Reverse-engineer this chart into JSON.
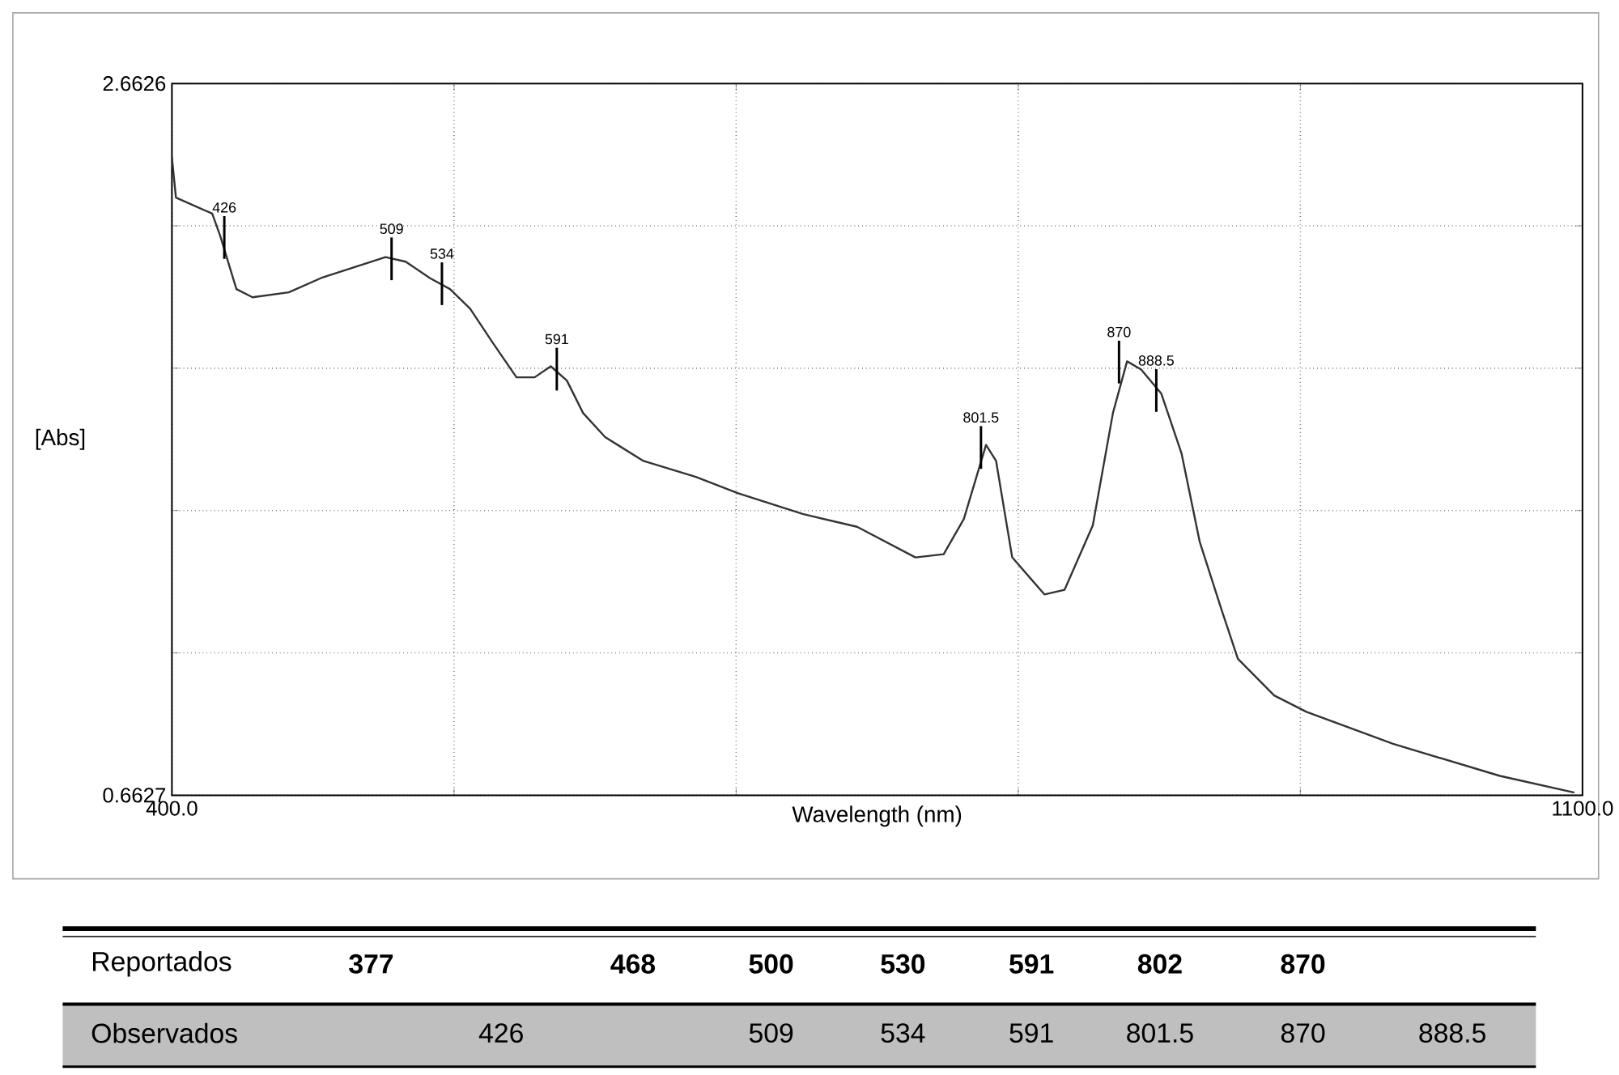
{
  "chart_data": {
    "type": "line",
    "xlabel": "Wavelength (nm)",
    "ylabel": "[Abs]",
    "color": "#333333",
    "grid": true,
    "marker": "none",
    "line_style": "solid",
    "x": [
      400,
      402,
      420,
      424,
      432,
      440,
      458,
      474,
      506,
      516,
      528,
      538,
      548,
      559,
      571,
      580,
      588,
      596,
      604,
      615,
      634,
      660,
      681,
      713,
      740,
      769,
      783,
      793,
      804,
      809,
      817,
      833,
      843,
      857,
      867,
      874,
      881,
      891,
      901,
      910,
      921,
      929,
      947,
      963,
      1006,
      1059,
      1096
    ],
    "values": [
      2.455,
      2.342,
      2.297,
      2.234,
      2.085,
      2.062,
      2.076,
      2.116,
      2.175,
      2.162,
      2.116,
      2.085,
      2.03,
      1.936,
      1.837,
      1.837,
      1.868,
      1.828,
      1.737,
      1.669,
      1.602,
      1.557,
      1.511,
      1.453,
      1.417,
      1.331,
      1.34,
      1.439,
      1.647,
      1.602,
      1.331,
      1.227,
      1.24,
      1.421,
      1.737,
      1.882,
      1.859,
      1.791,
      1.624,
      1.376,
      1.182,
      1.046,
      0.943,
      0.897,
      0.807,
      0.717,
      0.67
    ],
    "xlim": [
      400,
      1100
    ],
    "ylim": [
      0.6627,
      2.6626
    ],
    "xticks": [
      {
        "value": 400,
        "label": "400.0"
      },
      {
        "value": 540,
        "label": null
      },
      {
        "value": 680,
        "label": null
      },
      {
        "value": 820,
        "label": null
      },
      {
        "value": 960,
        "label": null
      },
      {
        "value": 1100,
        "label": "1100.0"
      }
    ],
    "yticks": [
      0.6627,
      {
        "value": 1.0627,
        "label": null
      },
      {
        "value": 1.4627,
        "label": null
      },
      {
        "value": 1.8627,
        "label": null
      },
      {
        "value": 2.2627,
        "label": null
      },
      2.6626
    ],
    "annotations": [
      {
        "text": "426",
        "x": 426,
        "y": 2.23
      },
      {
        "text": "509",
        "x": 509,
        "y": 2.17
      },
      {
        "text": "534",
        "x": 534,
        "y": 2.1
      },
      {
        "text": "591",
        "x": 591,
        "y": 1.86
      },
      {
        "text": "801.5",
        "x": 801.5,
        "y": 1.64
      },
      {
        "text": "870",
        "x": 870,
        "y": 1.88
      },
      {
        "text": "888.5",
        "x": 888.5,
        "y": 1.8
      },
      "Reportados",
      "377",
      "468",
      "500",
      "530",
      "591",
      "802",
      "870",
      "Observados",
      "426",
      "509",
      "534",
      "591",
      "801.5",
      "870",
      "888.5"
    ]
  }
}
